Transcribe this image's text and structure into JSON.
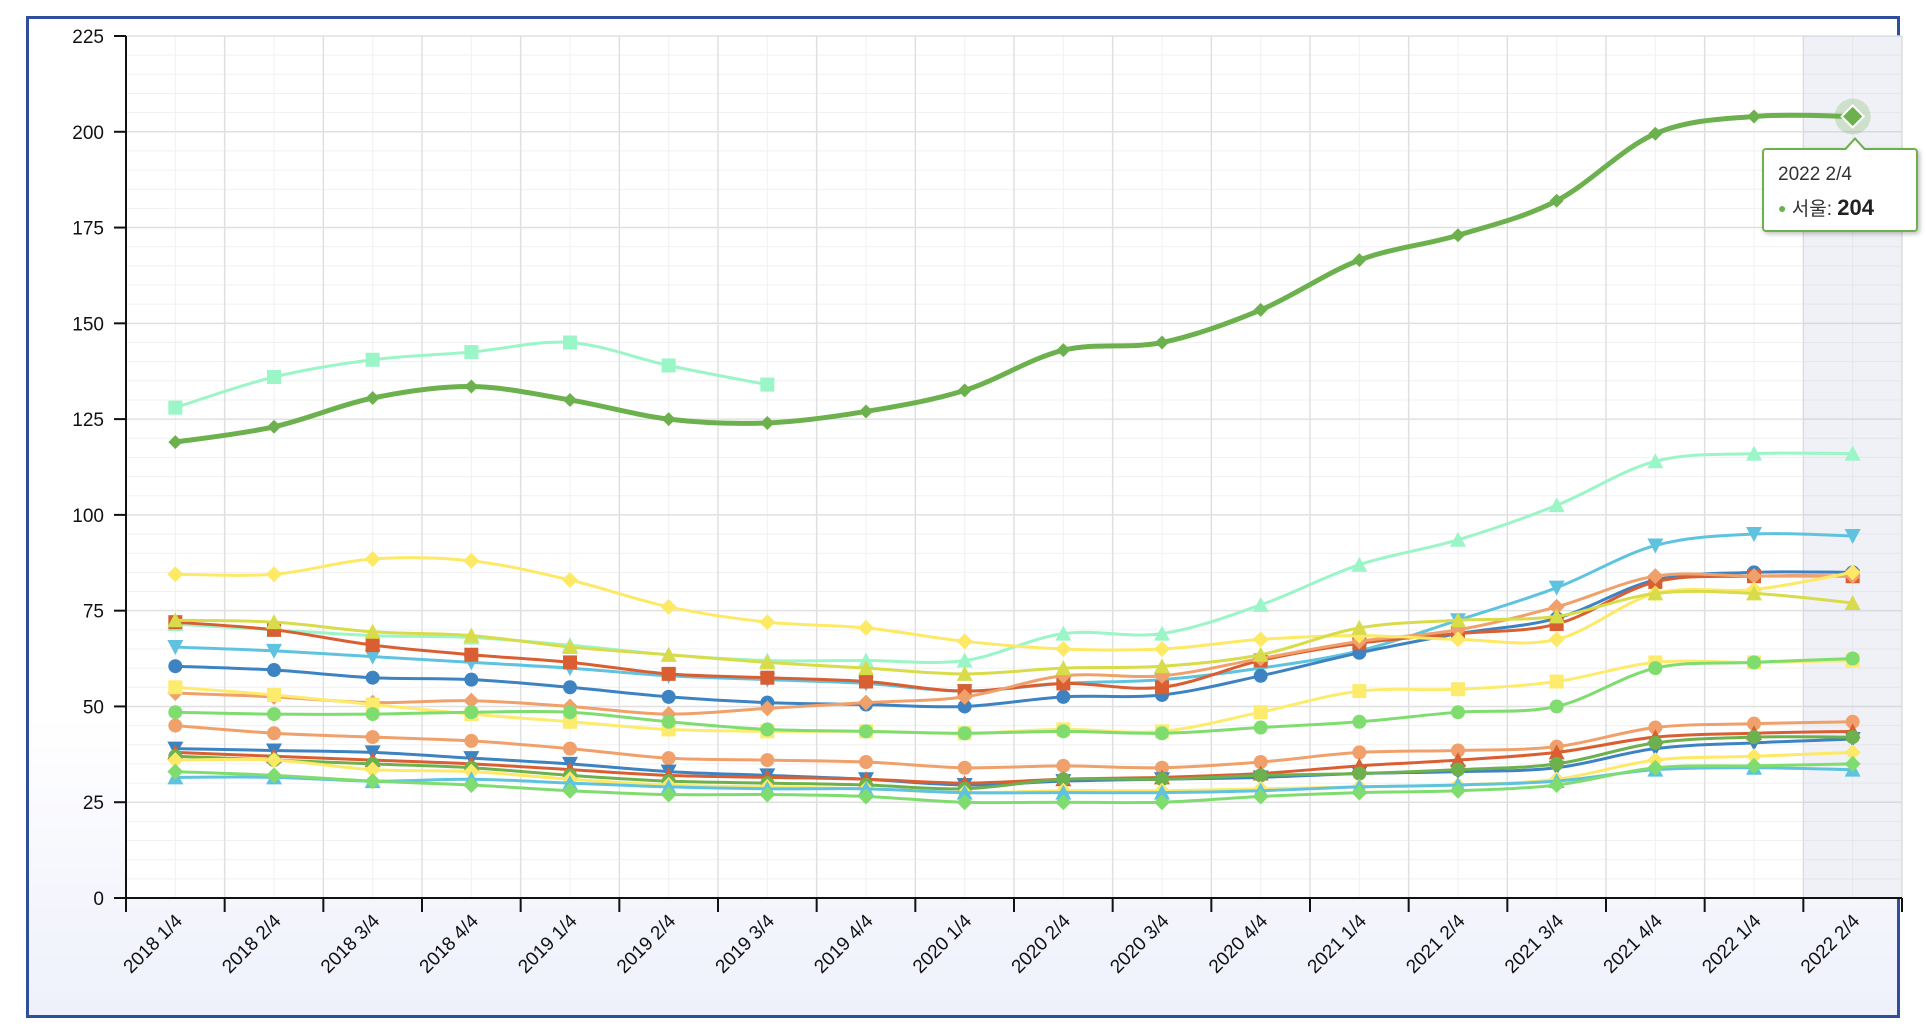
{
  "chart_data": {
    "type": "line",
    "title": "",
    "xlabel": "",
    "ylabel": "",
    "ylim": [
      0,
      225
    ],
    "yticks": [
      0,
      25,
      50,
      75,
      100,
      125,
      150,
      175,
      200,
      225
    ],
    "grid": true,
    "categories": [
      "2018 1/4",
      "2018 2/4",
      "2018 3/4",
      "2018 4/4",
      "2019 1/4",
      "2019 2/4",
      "2019 3/4",
      "2019 4/4",
      "2020 1/4",
      "2020 2/4",
      "2020 3/4",
      "2020 4/4",
      "2021 1/4",
      "2021 2/4",
      "2021 3/4",
      "2021 4/4",
      "2022 1/4",
      "2022 2/4"
    ],
    "highlight_index": 17,
    "series": [
      {
        "name": "서울",
        "color": "#6db14e",
        "marker": "diamond",
        "width": 5,
        "values": [
          119,
          123,
          130.5,
          133.5,
          130,
          125,
          124,
          127,
          132.5,
          143,
          145,
          153.5,
          166.5,
          173,
          182,
          199.5,
          204,
          204
        ]
      },
      {
        "color": "#9af5c7",
        "marker": "square",
        "width": 3,
        "values": [
          128,
          136,
          140.5,
          142.5,
          145,
          139,
          134,
          null,
          null,
          null,
          null,
          null,
          null,
          null,
          null,
          null,
          null,
          null
        ]
      },
      {
        "color": "#9af5c7",
        "marker": "triangle",
        "width": 3,
        "values": [
          71.5,
          70,
          68.5,
          68,
          66,
          63.5,
          62,
          62,
          62,
          69,
          69,
          76.5,
          87,
          93.5,
          102.5,
          114,
          116,
          116
        ]
      },
      {
        "color": "#5fc3df",
        "marker": "triangle-down",
        "width": 3,
        "values": [
          65.5,
          64.5,
          63,
          61.5,
          60,
          58,
          57,
          56,
          54,
          56,
          57,
          60,
          64.5,
          72.5,
          81,
          92,
          95,
          94.5
        ]
      },
      {
        "color": "#3d83c1",
        "marker": "circle",
        "width": 3,
        "values": [
          60.5,
          59.5,
          57.5,
          57,
          55,
          52.5,
          51,
          50.5,
          50,
          52.5,
          53,
          58,
          64,
          69,
          73,
          83,
          85,
          85
        ]
      },
      {
        "color": "#d95f33",
        "marker": "square",
        "width": 3,
        "values": [
          72,
          70,
          66,
          63.5,
          61.5,
          58.5,
          57.5,
          56.5,
          54,
          56,
          55,
          62,
          66.5,
          69,
          71.5,
          82.5,
          84,
          84
        ]
      },
      {
        "color": "#f0a06a",
        "marker": "diamond",
        "width": 3,
        "values": [
          53.5,
          52.5,
          51,
          51.5,
          50,
          48,
          49.5,
          51,
          52.5,
          58,
          58,
          62.5,
          67,
          70,
          76,
          84,
          84,
          84
        ]
      },
      {
        "color": "#fde965",
        "marker": "diamond",
        "width": 3,
        "values": [
          84.5,
          84.5,
          88.5,
          88,
          83,
          76,
          72,
          70.5,
          67,
          65,
          65,
          67.5,
          68.5,
          67.5,
          67.5,
          79.5,
          80.5,
          85
        ]
      },
      {
        "color": "#d8dc4a",
        "marker": "triangle",
        "width": 3,
        "values": [
          72.5,
          72,
          69.5,
          68.5,
          65.5,
          63.5,
          61.5,
          60,
          58.5,
          60,
          60.5,
          63.5,
          70.5,
          72.5,
          73.5,
          79.5,
          79.5,
          77
        ]
      },
      {
        "color": "#fdeb6e",
        "marker": "square",
        "width": 3,
        "values": [
          55,
          53,
          50.5,
          48,
          46,
          44,
          43.5,
          43.5,
          43,
          44,
          43.5,
          48.5,
          54,
          54.5,
          56.5,
          61.5,
          61.5,
          62
        ]
      },
      {
        "color": "#7fdd6f",
        "marker": "circle",
        "width": 3,
        "values": [
          48.5,
          48,
          48,
          48.5,
          48.5,
          46,
          44,
          43.5,
          43,
          43.5,
          43,
          44.5,
          46,
          48.5,
          50,
          60,
          61.5,
          62.5
        ]
      },
      {
        "color": "#f0a06a",
        "marker": "circle",
        "width": 3,
        "values": [
          45,
          43,
          42,
          41,
          39,
          36.5,
          36,
          35.5,
          34,
          34.5,
          34,
          35.5,
          38,
          38.5,
          39.5,
          44.5,
          45.5,
          46
        ]
      },
      {
        "color": "#3d83c1",
        "marker": "triangle-down",
        "width": 3,
        "values": [
          39,
          38.5,
          38,
          36.5,
          35,
          33,
          32,
          31,
          29.5,
          30.5,
          31,
          31.5,
          32.5,
          33,
          34,
          39,
          40.5,
          41.5
        ]
      },
      {
        "color": "#d95f33",
        "marker": "triangle",
        "width": 3,
        "values": [
          38,
          37,
          36,
          35,
          33.5,
          32,
          31.5,
          31,
          30,
          31,
          31.5,
          32.5,
          34.5,
          36,
          38,
          42,
          43,
          43.5
        ]
      },
      {
        "color": "#6db14e",
        "marker": "circle",
        "width": 3,
        "values": [
          37,
          36,
          35,
          34,
          32,
          30.5,
          30,
          29.5,
          28.5,
          31,
          31,
          32,
          32.5,
          33.5,
          35,
          40.5,
          42,
          42
        ]
      },
      {
        "color": "#fde965",
        "marker": "diamond",
        "width": 3,
        "values": [
          36,
          36,
          33.5,
          33,
          31,
          29.5,
          29,
          28.5,
          27.5,
          28,
          28,
          28.5,
          29,
          29.5,
          31,
          36,
          37,
          38
        ]
      },
      {
        "color": "#5fc3df",
        "marker": "triangle",
        "width": 3,
        "values": [
          31.5,
          31.5,
          30.5,
          31,
          30,
          29,
          28.5,
          28.5,
          27.5,
          27.5,
          27.5,
          28,
          29,
          29.5,
          30.5,
          33.5,
          34,
          33.5
        ]
      },
      {
        "color": "#7fdd6f",
        "marker": "diamond",
        "width": 3,
        "values": [
          33,
          32,
          30.5,
          29.5,
          28,
          27,
          27,
          26.5,
          25,
          25,
          25,
          26.5,
          27.5,
          28,
          29.5,
          34,
          34.5,
          35
        ]
      }
    ]
  },
  "tooltip": {
    "date": "2022 2/4",
    "series_label": "서울: ",
    "value": "204"
  }
}
